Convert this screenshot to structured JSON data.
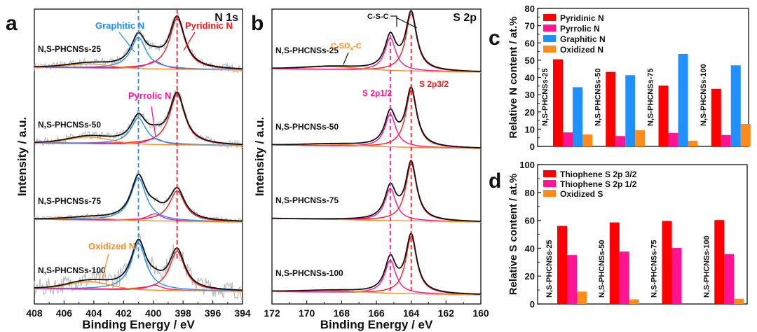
{
  "chart_data": [
    {
      "panel": "a",
      "type": "line",
      "title": "N 1s",
      "xlabel": "Binding Energy / eV",
      "ylabel": "Intensity / a.u.",
      "xlim": [
        408,
        394
      ],
      "xticks": [
        408,
        406,
        404,
        402,
        400,
        398,
        396,
        394
      ],
      "reference_lines": [
        {
          "x": 401.0,
          "color": "#2b8fe8",
          "style": "dashed"
        },
        {
          "x": 398.4,
          "color": "#e8202a",
          "style": "dashed"
        }
      ],
      "components": [
        {
          "name": "Pyridinic N",
          "center": 398.4,
          "color": "#ff1a1a"
        },
        {
          "name": "Pyrrolic N",
          "center": 399.9,
          "color": "#ff1493"
        },
        {
          "name": "Graphitic N",
          "center": 401.0,
          "color": "#1e90ff"
        },
        {
          "name": "Oxidized N",
          "center": 404.3,
          "color": "#ff8c1a"
        }
      ],
      "spectra": [
        {
          "sample": "N,S-PHCNSs-25",
          "amplitudes": {
            "Pyridinic N": 1.0,
            "Pyrrolic N": 0.15,
            "Graphitic N": 0.62,
            "Oxidized N": 0.08
          },
          "noise": 0.08
        },
        {
          "sample": "N,S-PHCNSs-50",
          "amplitudes": {
            "Pyridinic N": 1.0,
            "Pyrrolic N": 0.12,
            "Graphitic N": 0.52,
            "Oxidized N": 0.13
          },
          "noise": 0.08
        },
        {
          "sample": "N,S-PHCNSs-75",
          "amplitudes": {
            "Pyridinic N": 0.6,
            "Pyrrolic N": 0.14,
            "Graphitic N": 0.85,
            "Oxidized N": 0.04
          },
          "noise": 0.05
        },
        {
          "sample": "N,S-PHCNSs-100",
          "amplitudes": {
            "Pyridinic N": 0.78,
            "Pyrrolic N": 0.1,
            "Graphitic N": 0.93,
            "Oxidized N": 0.15
          },
          "noise": 0.18
        }
      ],
      "annotations": [
        {
          "text": "Graphitic N",
          "color": "#1e90ff"
        },
        {
          "text": "Pyridinic N",
          "color": "#ff1a1a"
        },
        {
          "text": "Pyrrolic N",
          "color": "#ff1493"
        },
        {
          "text": "Oxidized N",
          "color": "#ff8c1a"
        }
      ]
    },
    {
      "panel": "b",
      "type": "line",
      "title": "S 2p",
      "xlabel": "Binding Energy / eV",
      "ylabel": "Intensity / a.u.",
      "xlim": [
        172,
        160
      ],
      "xticks": [
        172,
        170,
        168,
        166,
        164,
        162,
        160
      ],
      "reference_lines": [
        {
          "x": 165.2,
          "color": "#ff1493",
          "style": "dashed"
        },
        {
          "x": 164.0,
          "color": "#ff1a1a",
          "style": "dashed"
        }
      ],
      "components": [
        {
          "name": "S 2p3/2",
          "center": 164.0,
          "color": "#ff1a1a"
        },
        {
          "name": "S 2p1/2",
          "center": 165.2,
          "color": "#ff1493"
        },
        {
          "name": "C-SOx-C",
          "center": 168.5,
          "color": "#ff8c1a"
        }
      ],
      "spectra": [
        {
          "sample": "N,S-PHCNSs-25",
          "amplitudes": {
            "S 2p3/2": 1.0,
            "S 2p1/2": 0.57,
            "C-SOx-C": 0.05
          }
        },
        {
          "sample": "N,S-PHCNSs-50",
          "amplitudes": {
            "S 2p3/2": 1.0,
            "S 2p1/2": 0.57,
            "C-SOx-C": 0.03
          }
        },
        {
          "sample": "N,S-PHCNSs-75",
          "amplitudes": {
            "S 2p3/2": 1.0,
            "S 2p1/2": 0.56,
            "C-SOx-C": 0.0
          }
        },
        {
          "sample": "N,S-PHCNSs-100",
          "amplitudes": {
            "S 2p3/2": 1.0,
            "S 2p1/2": 0.58,
            "C-SOx-C": 0.03
          }
        }
      ],
      "annotations": [
        {
          "text": "C-S-C",
          "color": "#111111"
        },
        {
          "text": "C-SO",
          "sub": "x",
          "suffix": "-C",
          "color": "#ff8c1a"
        },
        {
          "text": "S 2p1/2",
          "color": "#ff1493"
        },
        {
          "text": "S 2p3/2",
          "color": "#ff1a1a"
        }
      ]
    },
    {
      "panel": "c",
      "type": "bar",
      "title": "",
      "xlabel": "",
      "ylabel": "Relative N content / at.%",
      "ylim": [
        0,
        80
      ],
      "yticks": [
        0,
        10,
        20,
        30,
        40,
        50,
        60,
        70,
        80
      ],
      "categories": [
        "N,S-PHCNSs-25",
        "N,S-PHCNSs-50",
        "N,S-PHCNSs-75",
        "N,S-PHCNSs-100"
      ],
      "legend_position": "top-left",
      "series": [
        {
          "name": "Pyridinic N",
          "color": "#ff0000",
          "values": [
            50.5,
            43.2,
            35.2,
            33.4
          ]
        },
        {
          "name": "Pyrrolic N",
          "color": "#ff1493",
          "values": [
            8.1,
            6.0,
            7.8,
            6.6
          ]
        },
        {
          "name": "Graphitic N",
          "color": "#1e90ff",
          "values": [
            34.3,
            41.3,
            53.6,
            47.0
          ]
        },
        {
          "name": "Oxidized N",
          "color": "#ff8c1a",
          "values": [
            7.0,
            9.4,
            3.3,
            13.0
          ]
        }
      ]
    },
    {
      "panel": "d",
      "type": "bar",
      "title": "",
      "xlabel": "",
      "ylabel": "Relative S content / at.%",
      "ylim": [
        0,
        100
      ],
      "yticks": [
        0,
        20,
        40,
        60,
        80,
        100
      ],
      "categories": [
        "N,S-PHCNSs-25",
        "N,S-PHCNSs-50",
        "N,S-PHCNSs-75",
        "N,S-PHCNSs-100"
      ],
      "legend_position": "top-left",
      "series": [
        {
          "name": "Thiophene S 2p 3/2",
          "color": "#ff0000",
          "values": [
            56.0,
            58.5,
            59.6,
            60.2
          ]
        },
        {
          "name": "Thiophene S 2p 1/2",
          "color": "#ff1493",
          "values": [
            35.1,
            37.6,
            40.2,
            35.8
          ]
        },
        {
          "name": "Oxidized S",
          "color": "#ff8c1a",
          "values": [
            8.9,
            3.3,
            0.0,
            3.7
          ]
        }
      ]
    }
  ]
}
